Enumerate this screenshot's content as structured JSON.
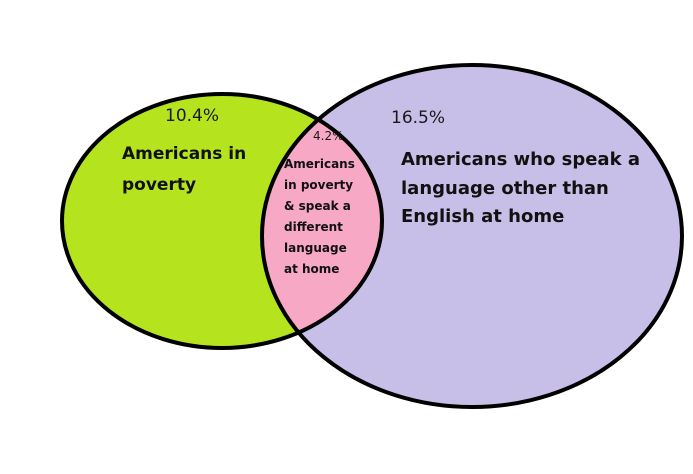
{
  "venn": {
    "left": {
      "percent": "10.4%",
      "label_lines": [
        "Americans in",
        "poverty"
      ]
    },
    "right": {
      "percent": "16.5%",
      "label_lines": [
        "Americans who speak a",
        "language other than",
        "English at home"
      ]
    },
    "overlap": {
      "percent": "4.2%",
      "label_lines": [
        "Americans",
        "in poverty",
        "& speak a",
        "different",
        "language",
        "at home"
      ]
    }
  },
  "colors": {
    "left_fill": "#b5e31e",
    "right_fill": "#c7bfe8",
    "overlap_fill": "#f7a8c4",
    "stroke": "#000000"
  }
}
